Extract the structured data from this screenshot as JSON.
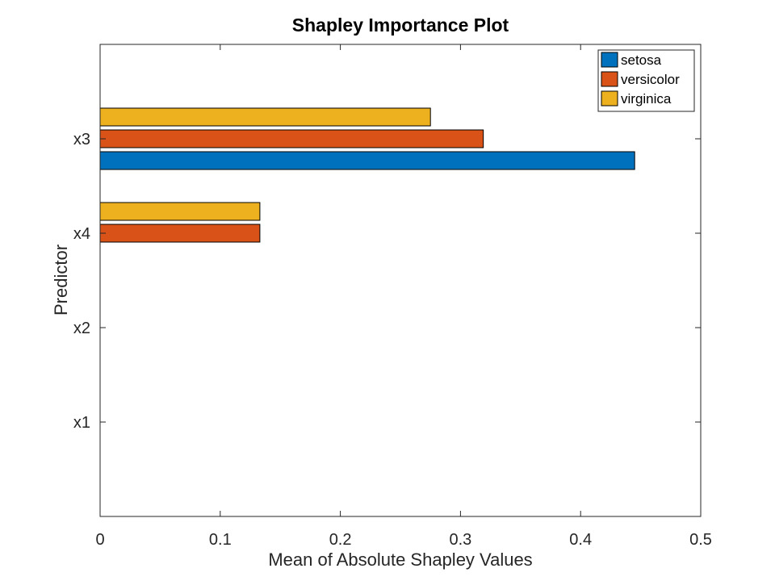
{
  "chart_data": {
    "type": "bar",
    "orientation": "horizontal",
    "title": "Shapley Importance Plot",
    "xlabel": "Mean of Absolute Shapley Values",
    "ylabel": "Predictor",
    "xlim": [
      0,
      0.5
    ],
    "xticks": [
      0,
      0.1,
      0.2,
      0.3,
      0.4,
      0.5
    ],
    "xtick_labels": [
      "0",
      "0.1",
      "0.2",
      "0.3",
      "0.4",
      "0.5"
    ],
    "categories": [
      "x3",
      "x4",
      "x2",
      "x1"
    ],
    "series": [
      {
        "name": "setosa",
        "color": "#0072BD",
        "values": [
          0.445,
          0,
          0,
          0
        ]
      },
      {
        "name": "versicolor",
        "color": "#D95319",
        "values": [
          0.319,
          0.133,
          0,
          0
        ]
      },
      {
        "name": "virginica",
        "color": "#EDB120",
        "values": [
          0.275,
          0.133,
          0,
          0
        ]
      }
    ],
    "grid": false,
    "legend": "top-right"
  }
}
